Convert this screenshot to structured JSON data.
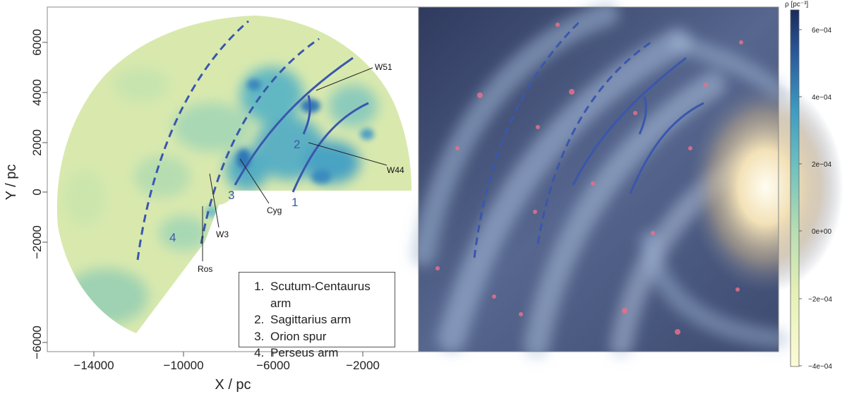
{
  "map_panel": {
    "xlabel": "X / pc",
    "ylabel": "Y / pc",
    "x_ticks": [
      "−14000",
      "−10000",
      "−6000",
      "−2000"
    ],
    "y_ticks": [
      "6000",
      "4000",
      "2000",
      "0",
      "−2000",
      "−6000"
    ],
    "xlim": [
      -16000,
      0
    ],
    "ylim": [
      -6500,
      7000
    ],
    "annotations": [
      "W51",
      "W44",
      "Cyg",
      "W3",
      "Ros"
    ],
    "arm_numbers": [
      "1",
      "2",
      "3",
      "4"
    ]
  },
  "legend": {
    "items": [
      "Scutum-Centaurus arm",
      "Sagittarius arm",
      "Orion spur",
      "Perseus arm"
    ]
  },
  "colorbar": {
    "label": "ρ [pc⁻³]",
    "ticks": [
      "6e−04",
      "4e−04",
      "2e−04",
      "0e+00",
      "−2e−04",
      "−4e−04"
    ],
    "range": [
      -0.0004,
      0.00066
    ],
    "colors": [
      "#fdfbd6",
      "#e4f0b8",
      "#b4dcb2",
      "#6ec0c0",
      "#3b98c0",
      "#2a5a9c",
      "#1a2a5c"
    ]
  },
  "colors": {
    "arm_line": "#3a57ad",
    "map_base": "#d8e8ad"
  }
}
